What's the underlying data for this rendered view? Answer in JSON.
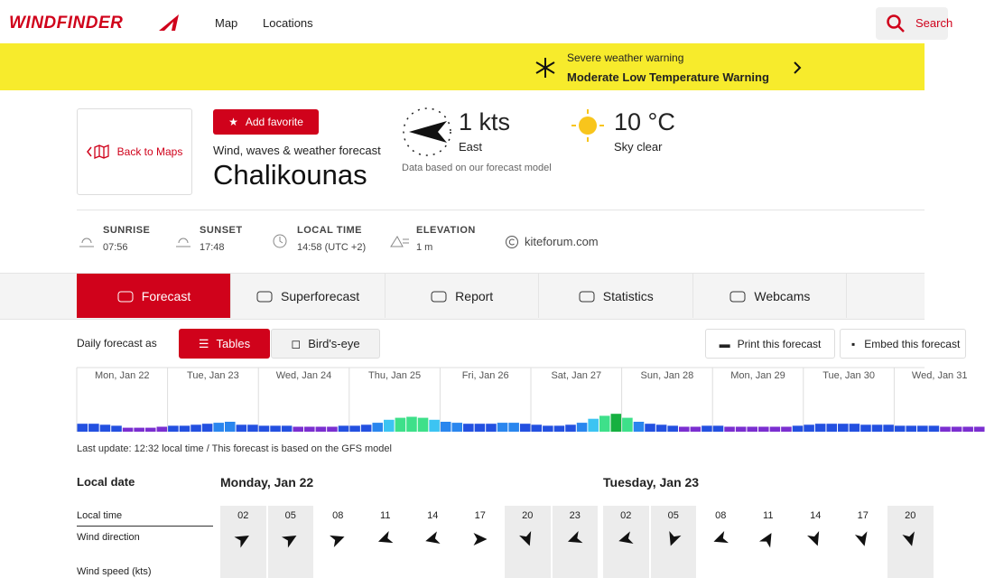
{
  "header": {
    "logo": "WINDFINDER",
    "nav": [
      "Map",
      "Locations"
    ],
    "search": "Search"
  },
  "warning": {
    "title": "Severe weather warning",
    "text": "Moderate Low Temperature Warning"
  },
  "spot": {
    "back": "Back to Maps",
    "favorite": "Add favorite",
    "subtitle": "Wind, waves & weather forecast",
    "name": "Chalikounas",
    "wind": "1 kts",
    "wind_direction": "East",
    "model_note": "Data based on our forecast model",
    "temperature": "10 °C",
    "sky": "Sky clear"
  },
  "facts": [
    {
      "label": "SUNRISE",
      "value": "07:56"
    },
    {
      "label": "SUNSET",
      "value": "17:48"
    },
    {
      "label": "LOCAL TIME",
      "value": "14:58 (UTC +2)"
    },
    {
      "label": "ELEVATION",
      "value": "1 m"
    }
  ],
  "source": "kiteforum.com",
  "tabs": [
    "Forecast",
    "Superforecast",
    "Report",
    "Statistics",
    "Webcams"
  ],
  "toolbar": {
    "label": "Daily forecast as",
    "views": [
      "Tables",
      "Bird's-eye"
    ],
    "print": "Print this forecast",
    "embed": "Embed this forecast"
  },
  "overview": {
    "days": [
      "Mon, Jan 22",
      "Tue, Jan 23",
      "Wed, Jan 24",
      "Thu, Jan 25",
      "Fri, Jan 26",
      "Sat, Jan 27",
      "Sun, Jan 28",
      "Mon, Jan 29",
      "Tue, Jan 30",
      "Wed, Jan 31"
    ],
    "wind_speed": [
      8,
      8,
      7,
      6,
      4,
      4,
      4,
      5,
      6,
      6,
      7,
      8,
      9,
      10,
      7,
      7,
      6,
      6,
      6,
      5,
      5,
      5,
      5,
      6,
      6,
      7,
      9,
      12,
      14,
      15,
      14,
      12,
      10,
      9,
      8,
      8,
      8,
      9,
      9,
      8,
      7,
      6,
      6,
      7,
      9,
      13,
      16,
      18,
      14,
      10,
      8,
      7,
      6,
      5,
      5,
      6,
      6,
      5,
      5,
      5,
      5,
      5,
      5,
      6,
      7,
      8,
      8,
      8,
      8,
      7,
      7,
      7,
      6,
      6,
      6,
      6,
      5,
      5,
      5,
      5
    ],
    "colors": [
      "#2350e0",
      "#2350e0",
      "#2350e0",
      "#2350e0",
      "#7b2fd0",
      "#7b2fd0",
      "#7b2fd0",
      "#7b2fd0",
      "#2350e0",
      "#2350e0",
      "#2350e0",
      "#2350e0",
      "#2a86ee",
      "#2a86ee",
      "#2350e0",
      "#2350e0",
      "#2350e0",
      "#2350e0",
      "#2350e0",
      "#7b2fd0",
      "#7b2fd0",
      "#7b2fd0",
      "#7b2fd0",
      "#2350e0",
      "#2350e0",
      "#2350e0",
      "#2a86ee",
      "#3cc4f2",
      "#3ee08a",
      "#3ee08a",
      "#3ee08a",
      "#3cc4f2",
      "#2a86ee",
      "#2a86ee",
      "#2350e0",
      "#2350e0",
      "#2350e0",
      "#2a86ee",
      "#2a86ee",
      "#2350e0",
      "#2350e0",
      "#2350e0",
      "#2350e0",
      "#2350e0",
      "#2a86ee",
      "#3cc4f2",
      "#3ee08a",
      "#16b040",
      "#3ee08a",
      "#2a86ee",
      "#2350e0",
      "#2350e0",
      "#2350e0",
      "#7b2fd0",
      "#7b2fd0",
      "#2350e0",
      "#2350e0",
      "#7b2fd0",
      "#7b2fd0",
      "#7b2fd0",
      "#7b2fd0",
      "#7b2fd0",
      "#7b2fd0",
      "#2350e0",
      "#2350e0",
      "#2350e0",
      "#2350e0",
      "#2350e0",
      "#2350e0",
      "#2350e0",
      "#2350e0",
      "#2350e0",
      "#2350e0",
      "#2350e0",
      "#2350e0",
      "#2350e0",
      "#7b2fd0",
      "#7b2fd0",
      "#7b2fd0",
      "#7b2fd0"
    ],
    "last_update": "Last update: 12:32 local time / This forecast is based on the GFS model"
  },
  "table": {
    "date_label": "Local date",
    "time_label": "Local time",
    "direction_label": "Wind direction",
    "speed_label": "Wind speed (kts)",
    "days": [
      {
        "date": "Monday, Jan 22",
        "hours": [
          "02",
          "05",
          "08",
          "11",
          "14",
          "17",
          "20",
          "23"
        ],
        "wind_direction": [
          60,
          60,
          70,
          250,
          255,
          90,
          160,
          250
        ]
      },
      {
        "date": "Tuesday, Jan 23",
        "hours": [
          "02",
          "05",
          "08",
          "11",
          "14",
          "17",
          "20"
        ],
        "wind_direction": [
          255,
          200,
          250,
          30,
          160,
          165,
          165
        ]
      }
    ]
  }
}
